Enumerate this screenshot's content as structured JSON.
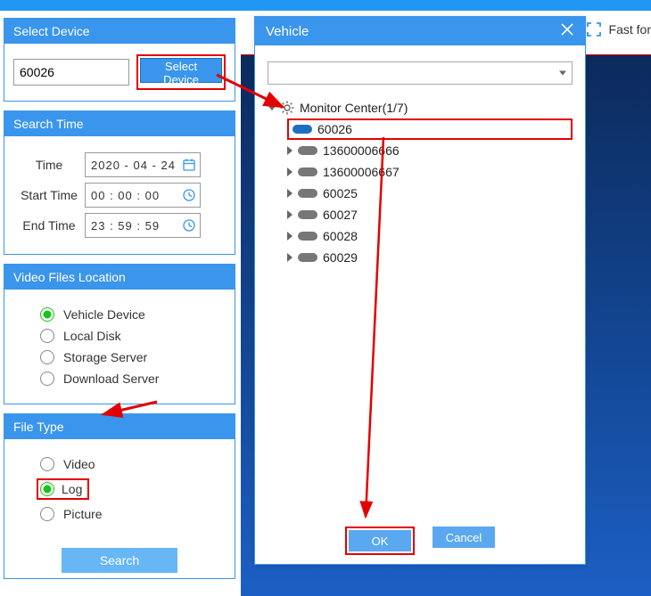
{
  "colors": {
    "primary": "#3a95ec",
    "highlight": "#e30000",
    "radio_selected": "#19c319",
    "dark_bg_from": "#0c2a5c",
    "dark_bg_to": "#1c5fc4",
    "btn_light": "#67b6f5"
  },
  "topbar": {
    "fast_forward_label": "Fast for"
  },
  "panels": {
    "select_device": {
      "title": "Select Device",
      "input_value": "60026",
      "button_label": "Select Device"
    },
    "search_time": {
      "title": "Search Time",
      "rows": {
        "date": {
          "label": "Time",
          "value": "2020 - 04 - 24"
        },
        "start": {
          "label": "Start Time",
          "value": "00 : 00 : 00"
        },
        "end": {
          "label": "End Time",
          "value": "23 : 59 : 59"
        }
      }
    },
    "video_files_location": {
      "title": "Video Files Location",
      "options": [
        {
          "key": "vehicle_device",
          "label": "Vehicle Device",
          "selected": true
        },
        {
          "key": "local_disk",
          "label": "Local Disk",
          "selected": false
        },
        {
          "key": "storage_server",
          "label": "Storage Server",
          "selected": false
        },
        {
          "key": "download_server",
          "label": "Download Server",
          "selected": false
        }
      ]
    },
    "file_type": {
      "title": "File Type",
      "options": [
        {
          "key": "video",
          "label": "Video",
          "selected": false
        },
        {
          "key": "log",
          "label": "Log",
          "selected": true
        },
        {
          "key": "picture",
          "label": "Picture",
          "selected": false
        }
      ]
    },
    "search_button": "Search"
  },
  "modal": {
    "title": "Vehicle",
    "root": {
      "label": "Monitor Center(1/7)"
    },
    "items": [
      {
        "id": "60026",
        "online": true,
        "highlighted": true
      },
      {
        "id": "13600006666",
        "online": false,
        "highlighted": false
      },
      {
        "id": "13600006667",
        "online": false,
        "highlighted": false
      },
      {
        "id": "60025",
        "online": false,
        "highlighted": false
      },
      {
        "id": "60027",
        "online": false,
        "highlighted": false
      },
      {
        "id": "60028",
        "online": false,
        "highlighted": false
      },
      {
        "id": "60029",
        "online": false,
        "highlighted": false
      }
    ],
    "ok_label": "OK",
    "cancel_label": "Cancel"
  }
}
